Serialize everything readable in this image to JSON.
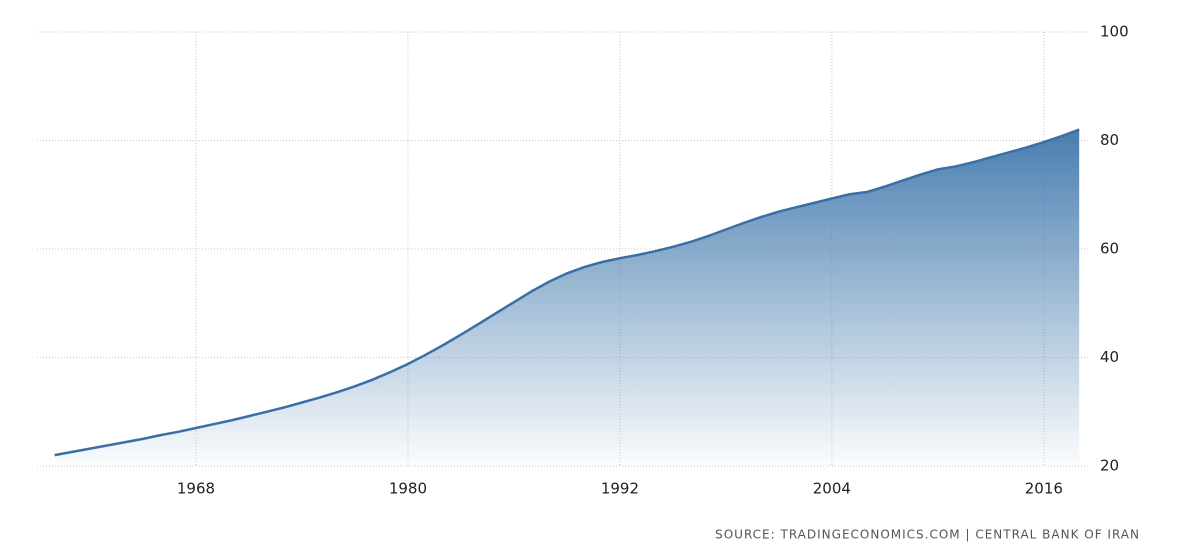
{
  "chart_data": {
    "type": "area",
    "x": [
      1960,
      1961,
      1962,
      1963,
      1964,
      1965,
      1966,
      1967,
      1968,
      1969,
      1970,
      1971,
      1972,
      1973,
      1974,
      1975,
      1976,
      1977,
      1978,
      1979,
      1980,
      1981,
      1982,
      1983,
      1984,
      1985,
      1986,
      1987,
      1988,
      1989,
      1990,
      1991,
      1992,
      1993,
      1994,
      1995,
      1996,
      1997,
      1998,
      1999,
      2000,
      2001,
      2002,
      2003,
      2004,
      2005,
      2006,
      2007,
      2008,
      2009,
      2010,
      2011,
      2012,
      2013,
      2014,
      2015,
      2016,
      2017,
      2018
    ],
    "values": [
      22.0,
      22.6,
      23.2,
      23.8,
      24.4,
      25.0,
      25.7,
      26.3,
      27.0,
      27.7,
      28.4,
      29.2,
      30.0,
      30.8,
      31.7,
      32.6,
      33.6,
      34.7,
      35.9,
      37.3,
      38.8,
      40.5,
      42.3,
      44.2,
      46.2,
      48.2,
      50.2,
      52.2,
      54.0,
      55.5,
      56.7,
      57.6,
      58.3,
      58.9,
      59.6,
      60.4,
      61.3,
      62.4,
      63.6,
      64.8,
      65.9,
      66.9,
      67.7,
      68.5,
      69.3,
      70.1,
      70.5,
      71.5,
      72.6,
      73.7,
      74.7,
      75.2,
      76.0,
      76.9,
      77.8,
      78.7,
      79.7,
      80.8,
      82.0
    ],
    "color": "#3a6fa5",
    "xlim": [
      1959,
      2018.5
    ],
    "xticks": [
      1968,
      1980,
      1992,
      2004,
      2016
    ],
    "ylim": [
      20,
      100
    ],
    "yticks": [
      20,
      40,
      60,
      80,
      100
    ],
    "grid": true,
    "source": "SOURCE: TRADINGECONOMICS.COM | CENTRAL BANK OF IRAN"
  }
}
